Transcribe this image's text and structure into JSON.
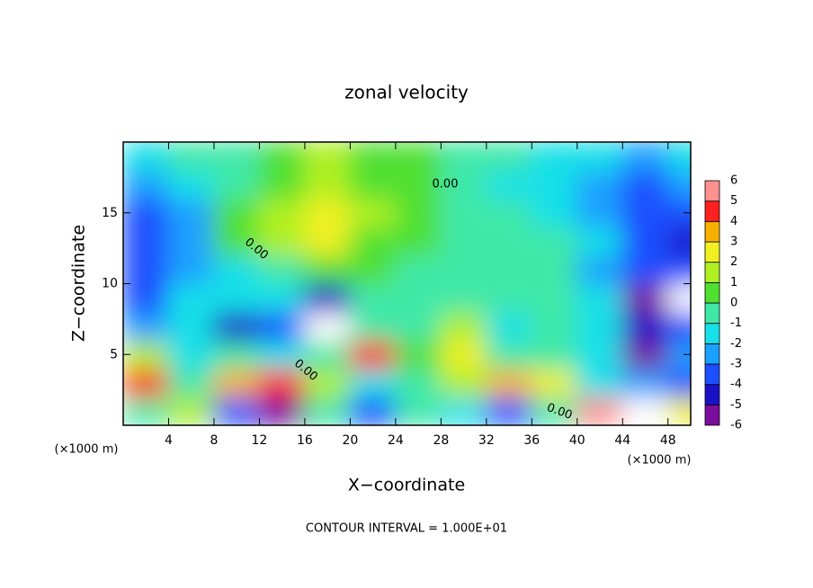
{
  "chart_data": {
    "type": "heatmap",
    "title": "zonal velocity",
    "x_label": "X−coordinate",
    "y_label": "Z−coordinate",
    "x_unit_label": "(×1000 m)",
    "footnote": "CONTOUR INTERVAL = 1.000E+01",
    "contour_label": "0.00",
    "xlim": [
      0,
      50
    ],
    "ylim": [
      0,
      20
    ],
    "xticks": [
      4,
      8,
      12,
      16,
      20,
      24,
      28,
      32,
      36,
      40,
      44,
      48
    ],
    "yticks": [
      5,
      10,
      15
    ],
    "x": [
      2,
      6,
      10,
      14,
      18,
      22,
      26,
      30,
      34,
      38,
      42,
      46,
      50
    ],
    "y": [
      1,
      3,
      5,
      7,
      9,
      11,
      13,
      15,
      17,
      19
    ],
    "z": [
      [
        0,
        2,
        -3,
        -6,
        0,
        -3,
        0,
        -1,
        -3,
        0,
        6,
        7,
        3
      ],
      [
        5,
        0,
        4,
        5,
        2,
        -1,
        0,
        2,
        4,
        3,
        -1,
        -2,
        -3
      ],
      [
        2,
        -1,
        0,
        -1,
        0,
        5,
        1,
        3,
        0,
        0,
        -1,
        -5,
        -2
      ],
      [
        -2,
        -1,
        -4,
        -3,
        -7,
        0,
        0,
        2,
        -1,
        0,
        -1,
        -4,
        -3
      ],
      [
        -3,
        -1,
        -1,
        -1,
        -4,
        0,
        0,
        0,
        0,
        0,
        -1,
        -5,
        -7
      ],
      [
        -3,
        -2,
        -1,
        0,
        1,
        1,
        0,
        0,
        0,
        0,
        -2,
        -3,
        -3
      ],
      [
        -3,
        -2,
        1,
        2,
        3,
        1,
        1,
        0,
        0,
        0,
        -1,
        -3,
        -4
      ],
      [
        -3,
        -2,
        1,
        2,
        3,
        2,
        1,
        0,
        0,
        -1,
        -2,
        -3,
        -3
      ],
      [
        -2,
        -1,
        0,
        1,
        2,
        1,
        1,
        0,
        -1,
        -1,
        -2,
        -3,
        -2
      ],
      [
        -1,
        0,
        0,
        1,
        2,
        1,
        1,
        0,
        0,
        -1,
        -1,
        -2,
        -1
      ]
    ],
    "levels": [
      -6,
      -5,
      -4,
      -3,
      -2,
      -1,
      0,
      1,
      2,
      3,
      4,
      5,
      6
    ],
    "colors": [
      "#7a0d9c",
      "#1a10c8",
      "#1c4fff",
      "#1aa0ff",
      "#16e0e8",
      "#40e8a8",
      "#50e030",
      "#b0f020",
      "#f0f020",
      "#f8b000",
      "#ff2020",
      "#ff9090"
    ],
    "out_of_range_color": "#ffffff"
  }
}
